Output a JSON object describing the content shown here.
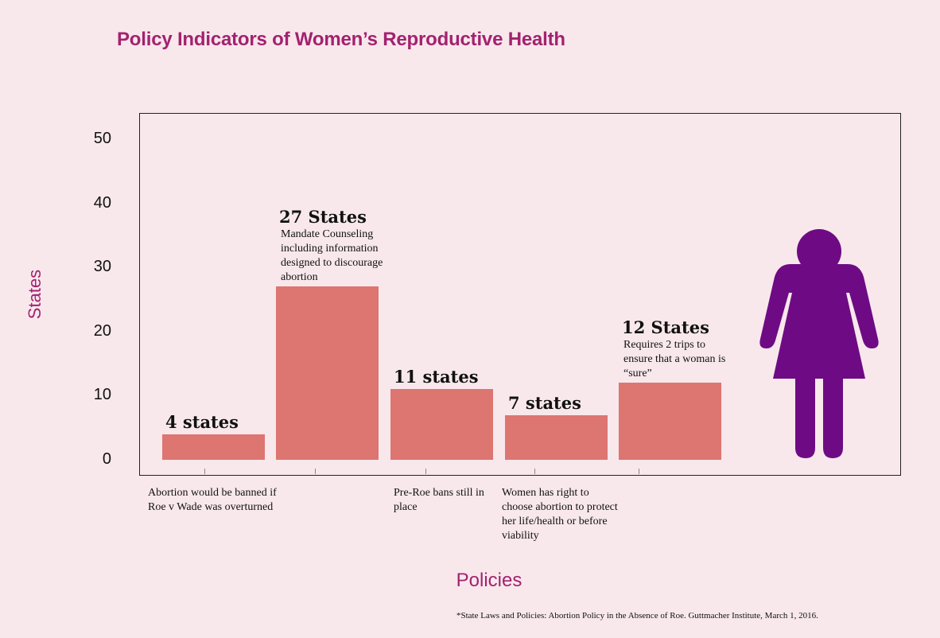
{
  "chart_data": {
    "type": "bar",
    "title": "Policy Indicators of Women’s Reproductive Health",
    "xlabel": "Policies",
    "ylabel": "States",
    "ylim": [
      0,
      50
    ],
    "yticks": [
      "50",
      "40",
      "30",
      "20",
      "10",
      "0"
    ],
    "grid": false,
    "values": [
      4,
      27,
      11,
      7,
      12
    ],
    "bar_color": "#dd7570",
    "bar_labels": [
      "4 states",
      "27 States",
      "11 states",
      "7 states",
      "12 States"
    ],
    "bar_descriptions": [
      "",
      "Mandate Counseling including information designed to discourage abortion",
      "",
      "",
      "Requires 2 trips to ensure that a woman is “sure”"
    ],
    "category_notes": [
      "Abortion would be banned if Roe v Wade was overturned",
      "",
      "Pre-Roe bans still in place",
      "Women has right to choose abortion to protect her life/health or before viability",
      ""
    ],
    "source": "*State Laws and Policies: Abortion Policy in the Absence of Roe. Guttmacher Institute, March 1, 2016."
  },
  "colors": {
    "accent": "#a3226f",
    "figure": "#6e0b84",
    "background": "#f8e8ec"
  },
  "icons": {
    "figure": "woman-icon"
  }
}
